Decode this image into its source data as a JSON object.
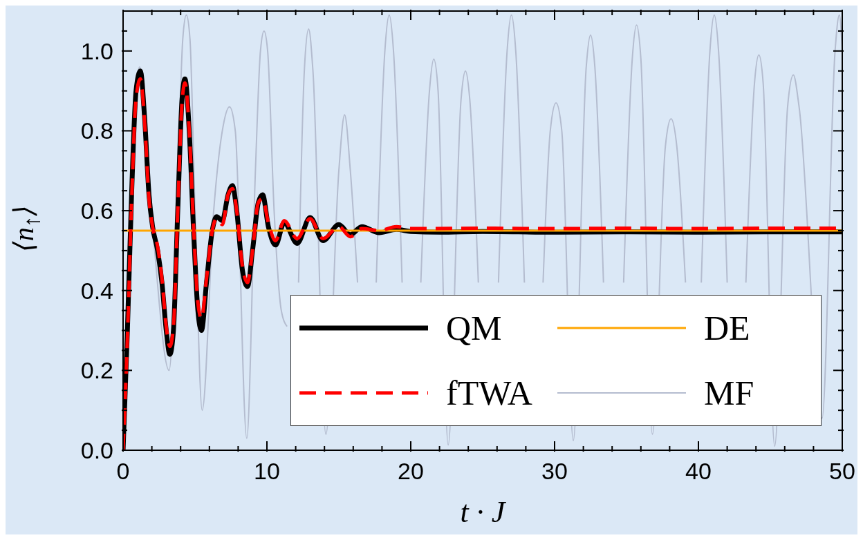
{
  "chart_data": {
    "type": "line",
    "xlabel": "t · J",
    "ylabel": "⟨n$_{↑}$⟩",
    "xlim": [
      0,
      50
    ],
    "ylim": [
      0,
      1.1
    ],
    "xticks": [
      0,
      {
        "value": 2,
        "label": null
      },
      {
        "value": 4,
        "label": null
      },
      {
        "value": 6,
        "label": null
      },
      {
        "value": 8,
        "label": null
      },
      10,
      {
        "value": 12,
        "label": null
      },
      {
        "value": 14,
        "label": null
      },
      {
        "value": 16,
        "label": null
      },
      {
        "value": 18,
        "label": null
      },
      20,
      {
        "value": 22,
        "label": null
      },
      {
        "value": 24,
        "label": null
      },
      {
        "value": 26,
        "label": null
      },
      {
        "value": 28,
        "label": null
      },
      30,
      {
        "value": 32,
        "label": null
      },
      {
        "value": 34,
        "label": null
      },
      {
        "value": 36,
        "label": null
      },
      {
        "value": 38,
        "label": null
      },
      40,
      {
        "value": 42,
        "label": null
      },
      {
        "value": 44,
        "label": null
      },
      {
        "value": 46,
        "label": null
      },
      {
        "value": 48,
        "label": null
      },
      50
    ],
    "yticks": [
      {
        "value": 0,
        "label": "0.0"
      },
      {
        "value": 0.05,
        "label": null
      },
      {
        "value": 0.1,
        "label": null
      },
      {
        "value": 0.15,
        "label": null
      },
      0.2,
      {
        "value": 0.25,
        "label": null
      },
      {
        "value": 0.3,
        "label": null
      },
      {
        "value": 0.35,
        "label": null
      },
      0.4,
      {
        "value": 0.45,
        "label": null
      },
      {
        "value": 0.5,
        "label": null
      },
      {
        "value": 0.55,
        "label": null
      },
      0.6,
      {
        "value": 0.65,
        "label": null
      },
      {
        "value": 0.7,
        "label": null
      },
      {
        "value": 0.75,
        "label": null
      },
      0.8,
      {
        "value": 0.85,
        "label": null
      },
      {
        "value": 0.9,
        "label": null
      },
      {
        "value": 0.95,
        "label": null
      },
      {
        "value": 1,
        "label": "1.0"
      },
      {
        "value": 1.05,
        "label": null
      }
    ],
    "legend": "bottom right",
    "marker": "none",
    "series": [
      {
        "name": "MF",
        "color": "#b4bccf",
        "x": [
          0,
          0.6,
          0.85,
          1.15,
          1.45,
          2.2,
          3.2,
          3.9,
          4.15,
          4.4,
          4.65,
          5.0,
          5.5,
          6.3,
          6.9,
          7.4,
          7.8,
          8.6,
          9.2,
          9.55,
          9.8,
          10.05,
          10.5,
          11.0,
          11.4,
          11.8,
          12.2,
          12.6,
          12.9,
          13.2,
          14.1,
          15.0,
          15.4,
          15.8,
          16.3,
          17.0,
          17.6,
          18.2,
          18.5,
          18.8,
          19.4,
          20.0,
          20.7,
          21.3,
          21.6,
          21.9,
          22.6,
          23.5,
          23.8,
          24.1,
          24.7,
          25.4,
          26.1,
          26.7,
          27.0,
          27.3,
          27.9,
          28.5,
          29.2,
          29.7,
          30.1,
          30.5,
          31.3,
          32.2,
          32.5,
          32.8,
          33.4,
          34.1,
          34.8,
          35.4,
          35.7,
          36.0,
          36.8,
          37.7,
          38.1,
          38.5,
          39.1,
          39.6,
          40.2,
          40.8,
          41.1,
          41.4,
          42.0,
          42.6,
          43.3,
          43.9,
          44.2,
          44.5,
          45.3,
          46.2,
          46.6,
          47.0,
          48.6,
          49.5,
          49.8,
          50
        ],
        "values": [
          0,
          0.6,
          0.88,
          0.96,
          0.88,
          0.5,
          0.2,
          0.8,
          1.03,
          1.09,
          1.03,
          0.6,
          0.1,
          0.6,
          0.8,
          0.86,
          0.8,
          0.03,
          0.7,
          1.0,
          1.05,
          1.0,
          0.6,
          0.35,
          0.31,
          null,
          0.42,
          0.95,
          1.055,
          0.95,
          0.04,
          0.7,
          0.84,
          0.7,
          0.42,
          null,
          0.42,
          1.0,
          1.09,
          1.0,
          0.42,
          null,
          0.42,
          0.9,
          0.98,
          0.9,
          0.013,
          0.88,
          0.95,
          0.88,
          0.42,
          null,
          0.42,
          1.0,
          1.09,
          1.0,
          0.42,
          null,
          0.42,
          0.8,
          0.87,
          0.8,
          0.024,
          0.96,
          1.04,
          0.96,
          0.42,
          null,
          0.42,
          0.98,
          1.065,
          0.98,
          0.04,
          0.76,
          0.83,
          0.76,
          0.42,
          null,
          0.42,
          1.0,
          1.09,
          1.0,
          0.42,
          null,
          0.42,
          0.92,
          0.99,
          0.92,
          0.01,
          0.86,
          0.94,
          0.86,
          0.08,
          1.0,
          1.09,
          1.0
        ]
      },
      {
        "name": "QM",
        "color": "#000000",
        "x": [
          0,
          0.3,
          0.6,
          0.9,
          1.2,
          1.5,
          1.8,
          2.05,
          2.4,
          2.7,
          3.0,
          3.25,
          3.5,
          3.8,
          4.1,
          4.3,
          4.6,
          4.9,
          5.2,
          5.45,
          5.8,
          6.2,
          6.5,
          6.9,
          7.3,
          7.6,
          7.9,
          8.3,
          8.65,
          9.0,
          9.4,
          9.7,
          10.1,
          10.6,
          11.2,
          12.1,
          13.0,
          13.9,
          15.0,
          15.8,
          16.6,
          17.8,
          19.0,
          20,
          22,
          25,
          30,
          35,
          40,
          45,
          50
        ],
        "values": [
          0,
          0.3,
          0.65,
          0.9,
          0.95,
          0.83,
          0.64,
          0.56,
          0.5,
          0.42,
          0.3,
          0.24,
          0.3,
          0.6,
          0.88,
          0.93,
          0.8,
          0.55,
          0.35,
          0.3,
          0.42,
          0.55,
          0.585,
          0.575,
          0.64,
          0.663,
          0.6,
          0.45,
          0.41,
          0.5,
          0.62,
          0.64,
          0.56,
          0.514,
          0.57,
          0.518,
          0.583,
          0.525,
          0.565,
          0.54,
          0.56,
          0.545,
          0.553,
          0.548,
          0.546,
          0.548,
          0.546,
          0.547,
          0.546,
          0.547,
          0.547
        ]
      },
      {
        "name": "DE",
        "color": "#ffa500",
        "x": [
          0,
          50
        ],
        "values": [
          0.55,
          0.55
        ]
      },
      {
        "name": "fTWA",
        "color": "#ff0000",
        "line_style": "dashed",
        "x": [
          0,
          0.3,
          0.6,
          0.9,
          1.2,
          1.5,
          1.8,
          2.05,
          2.4,
          2.7,
          3.0,
          3.25,
          3.5,
          3.8,
          4.1,
          4.3,
          4.6,
          4.9,
          5.2,
          5.45,
          5.8,
          6.2,
          6.5,
          6.9,
          7.3,
          7.6,
          7.9,
          8.3,
          8.65,
          9.0,
          9.4,
          9.7,
          10.1,
          10.6,
          11.2,
          12.1,
          13.0,
          13.9,
          15.0,
          15.8,
          16.6,
          17.8,
          19,
          20,
          25,
          30,
          35,
          40,
          45,
          50
        ],
        "values": [
          0,
          0.28,
          0.63,
          0.88,
          0.93,
          0.82,
          0.63,
          0.56,
          0.51,
          0.43,
          0.31,
          0.26,
          0.31,
          0.6,
          0.87,
          0.92,
          0.8,
          0.56,
          0.37,
          0.33,
          0.43,
          0.55,
          0.58,
          0.565,
          0.64,
          0.655,
          0.6,
          0.46,
          0.42,
          0.5,
          0.62,
          0.63,
          0.57,
          0.525,
          0.575,
          0.53,
          0.58,
          0.53,
          0.56,
          0.535,
          0.555,
          0.55,
          0.56,
          0.555,
          0.556,
          0.555,
          0.556,
          0.555,
          0.556,
          0.556
        ]
      }
    ]
  }
}
